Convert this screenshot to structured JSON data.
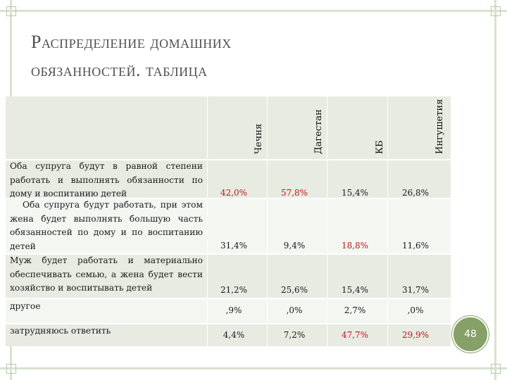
{
  "title": {
    "line1": "Распределение домашних",
    "line2": "обязанностей. таблица"
  },
  "table": {
    "columns": [
      "Чечня",
      "Дагестан",
      "КБ",
      "Ингушетия"
    ],
    "rows": [
      {
        "label": "Оба супруга будут в равной степени работать и выполнять обязанности по дому и воспитанию детей",
        "values": [
          "42,0%",
          "57,8%",
          "15,4%",
          "26,8%"
        ]
      },
      {
        "label": "Оба супруга будут работать, при этом жена будет выполнять большую часть обязанностей по дому и по воспитанию детей",
        "values": [
          "31,4%",
          "9,4%",
          "18,8%",
          "11,6%"
        ]
      },
      {
        "label": "Муж будет работать и материально обеспечивать семью, а жена будет вести хозяйство и воспитывать детей",
        "values": [
          "21,2%",
          "25,6%",
          "15,4%",
          "31,7%"
        ]
      },
      {
        "label": "другое",
        "values": [
          ",9%",
          ",0%",
          "2,7%",
          ",0%"
        ]
      },
      {
        "label": "затрудняюсь ответить",
        "values": [
          "4,4%",
          "7,2%",
          "47,7%",
          "29,9%"
        ]
      }
    ],
    "highlight_color": "#c0151b"
  },
  "slide_number": "48",
  "colors": {
    "accent": "#86a067",
    "row_shade": "#e7ebe2",
    "frame": "#d7e3cf"
  }
}
